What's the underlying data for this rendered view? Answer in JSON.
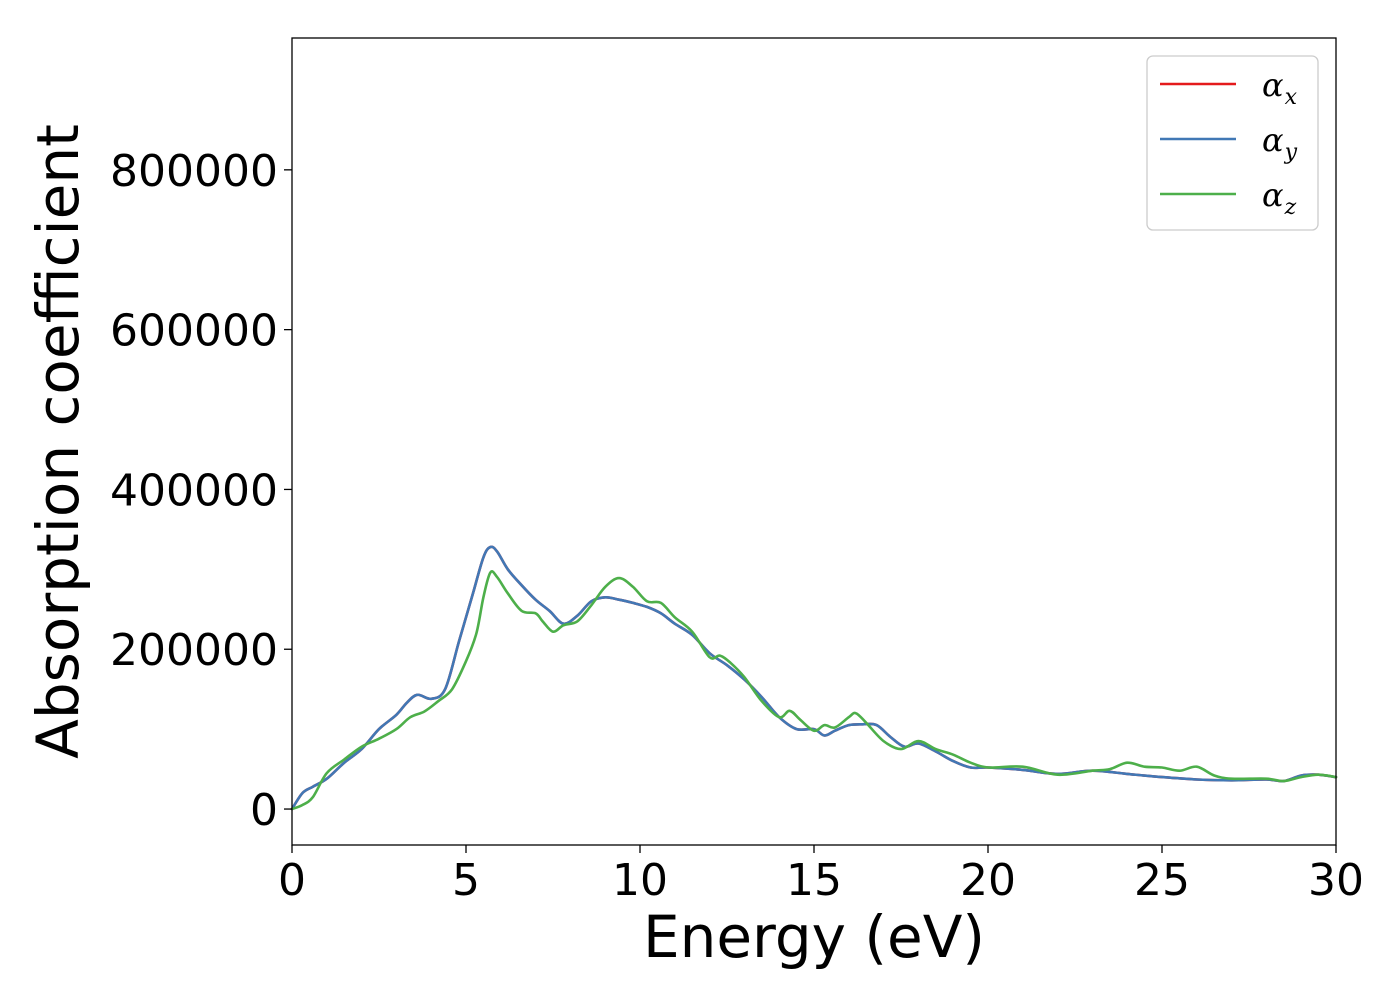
{
  "chart_data": {
    "type": "line",
    "xlabel": "Energy (eV)",
    "ylabel": "Absorption coefficient",
    "xlim": [
      0,
      30
    ],
    "ylim": [
      -45000,
      965000
    ],
    "xticks": [
      0,
      5,
      10,
      15,
      20,
      25,
      30
    ],
    "yticks": [
      0,
      200000,
      400000,
      600000,
      800000
    ],
    "grid": false,
    "legend_position": "top-right",
    "series": [
      {
        "name": "αx",
        "legend_base": "α",
        "legend_sub": "x",
        "color": "#e41a1c",
        "x": [
          0,
          0.3,
          0.6,
          1,
          1.5,
          2,
          2.5,
          3,
          3.3,
          3.6,
          4,
          4.4,
          4.8,
          5.2,
          5.5,
          5.7,
          5.9,
          6.2,
          6.6,
          7,
          7.4,
          7.8,
          8.2,
          8.6,
          9,
          9.4,
          9.8,
          10.2,
          10.6,
          11,
          11.5,
          12,
          12.5,
          13,
          13.5,
          14,
          14.5,
          15,
          15.3,
          15.6,
          16,
          16.4,
          16.8,
          17.2,
          17.6,
          18,
          18.5,
          19,
          19.5,
          20,
          21,
          22,
          23,
          24,
          25,
          26,
          27,
          28,
          28.5,
          29,
          29.5,
          30
        ],
        "y": [
          0,
          20000,
          28000,
          38000,
          58000,
          75000,
          100000,
          118000,
          133000,
          143000,
          138000,
          150000,
          210000,
          270000,
          315000,
          328000,
          322000,
          300000,
          280000,
          262000,
          248000,
          232000,
          242000,
          260000,
          265000,
          262000,
          258000,
          253000,
          245000,
          232000,
          218000,
          195000,
          180000,
          162000,
          140000,
          115000,
          100000,
          100000,
          92000,
          98000,
          105000,
          106000,
          105000,
          90000,
          78000,
          82000,
          72000,
          60000,
          52000,
          52000,
          49000,
          44000,
          48000,
          44000,
          40000,
          37000,
          36000,
          37000,
          35000,
          42000,
          43000,
          40000
        ]
      },
      {
        "name": "αy",
        "legend_base": "α",
        "legend_sub": "y",
        "color": "#4178b5",
        "x": [
          0,
          0.3,
          0.6,
          1,
          1.5,
          2,
          2.5,
          3,
          3.3,
          3.6,
          4,
          4.4,
          4.8,
          5.2,
          5.5,
          5.7,
          5.9,
          6.2,
          6.6,
          7,
          7.4,
          7.8,
          8.2,
          8.6,
          9,
          9.4,
          9.8,
          10.2,
          10.6,
          11,
          11.5,
          12,
          12.5,
          13,
          13.5,
          14,
          14.5,
          15,
          15.3,
          15.6,
          16,
          16.4,
          16.8,
          17.2,
          17.6,
          18,
          18.5,
          19,
          19.5,
          20,
          21,
          22,
          23,
          24,
          25,
          26,
          27,
          28,
          28.5,
          29,
          29.5,
          30
        ],
        "y": [
          0,
          20000,
          28000,
          38000,
          58000,
          75000,
          100000,
          118000,
          133000,
          143000,
          138000,
          150000,
          210000,
          270000,
          315000,
          328000,
          322000,
          300000,
          280000,
          262000,
          248000,
          232000,
          242000,
          260000,
          265000,
          262000,
          258000,
          253000,
          245000,
          232000,
          218000,
          195000,
          180000,
          162000,
          140000,
          115000,
          100000,
          100000,
          92000,
          98000,
          105000,
          106000,
          105000,
          90000,
          78000,
          82000,
          72000,
          60000,
          52000,
          52000,
          49000,
          44000,
          48000,
          44000,
          40000,
          37000,
          36000,
          37000,
          35000,
          42000,
          43000,
          40000
        ]
      },
      {
        "name": "αz",
        "legend_base": "α",
        "legend_sub": "z",
        "color": "#4daf4a",
        "x": [
          0,
          0.3,
          0.6,
          1,
          1.5,
          2,
          2.5,
          3,
          3.4,
          3.8,
          4.2,
          4.6,
          5,
          5.3,
          5.5,
          5.7,
          5.9,
          6.2,
          6.6,
          7,
          7.2,
          7.5,
          7.8,
          8.2,
          8.6,
          9,
          9.4,
          9.8,
          10.2,
          10.6,
          11,
          11.5,
          12,
          12.3,
          12.6,
          13,
          13.5,
          14,
          14.3,
          14.6,
          15,
          15.3,
          15.6,
          16,
          16.2,
          16.5,
          17,
          17.5,
          18,
          18.5,
          19,
          19.5,
          20,
          21,
          22,
          23,
          23.5,
          24,
          24.5,
          25,
          25.5,
          26,
          26.5,
          27,
          28,
          28.5,
          29,
          29.5,
          30
        ],
        "y": [
          0,
          5000,
          15000,
          45000,
          62000,
          78000,
          88000,
          100000,
          115000,
          122000,
          135000,
          150000,
          185000,
          220000,
          265000,
          296000,
          290000,
          270000,
          248000,
          245000,
          235000,
          222000,
          230000,
          235000,
          255000,
          278000,
          289000,
          278000,
          260000,
          258000,
          240000,
          222000,
          190000,
          192000,
          183000,
          165000,
          135000,
          115000,
          123000,
          112000,
          98000,
          105000,
          102000,
          115000,
          120000,
          108000,
          85000,
          75000,
          85000,
          75000,
          68000,
          58000,
          52000,
          53000,
          43000,
          48000,
          50000,
          58000,
          53000,
          52000,
          48000,
          53000,
          42000,
          38000,
          38000,
          35000,
          40000,
          43000,
          40000
        ]
      }
    ]
  }
}
